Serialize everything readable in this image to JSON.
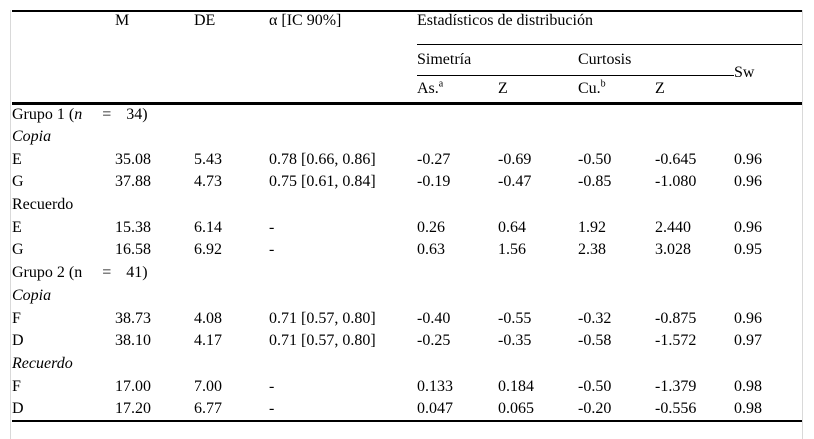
{
  "table": {
    "columns": {
      "m": "M",
      "de": "DE",
      "alpha": "α [IC 90%]",
      "dist": "Estadísticos de distribución",
      "simetria": "Simetría",
      "curtosis": "Curtosis",
      "sw": "Sw",
      "as_base": "As.",
      "as_sup": "a",
      "z_sim": "Z",
      "cu_base": "Cu.",
      "cu_sup": "b",
      "z_cur": "Z"
    },
    "rows": [
      {
        "type": "group",
        "prefix": "Grupo 1 (",
        "n": "n",
        "eq": "=",
        "suffix": "34)",
        "n_italic": true
      },
      {
        "type": "section",
        "label": "Copia",
        "italic": true
      },
      {
        "type": "data",
        "label": "E",
        "values": [
          "35.08",
          "5.43",
          "0.78 [0.66, 0.86]",
          "-0.27",
          "-0.69",
          "-0.50",
          "-0.645",
          "0.96"
        ]
      },
      {
        "type": "data",
        "label": "G",
        "values": [
          "37.88",
          "4.73",
          "0.75 [0.61, 0.84]",
          "-0.19",
          "-0.47",
          "-0.85",
          "-1.080",
          "0.96"
        ]
      },
      {
        "type": "section",
        "label": "Recuerdo",
        "italic": false
      },
      {
        "type": "data",
        "label": "E",
        "values": [
          "15.38",
          "6.14",
          "-",
          "0.26",
          "0.64",
          "1.92",
          "2.440",
          "0.96"
        ]
      },
      {
        "type": "data",
        "label": "G",
        "values": [
          "16.58",
          "6.92",
          "-",
          "0.63",
          "1.56",
          "2.38",
          "3.028",
          "0.95"
        ]
      },
      {
        "type": "group",
        "prefix": "Grupo 2 (",
        "n": "n",
        "eq": "=",
        "suffix": "41)",
        "n_italic": false
      },
      {
        "type": "section",
        "label": "Copia",
        "italic": true
      },
      {
        "type": "data",
        "label": "F",
        "values": [
          "38.73",
          "4.08",
          "0.71 [0.57, 0.80]",
          "-0.40",
          "-0.55",
          "-0.32",
          "-0.875",
          "0.96"
        ]
      },
      {
        "type": "data",
        "label": "D",
        "values": [
          "38.10",
          "4.17",
          "0.71 [0.57, 0.80]",
          "-0.25",
          "-0.35",
          "-0.58",
          "-1.572",
          "0.97"
        ]
      },
      {
        "type": "section",
        "label": "Recuerdo",
        "italic": true
      },
      {
        "type": "data",
        "label": "F",
        "values": [
          "17.00",
          "7.00",
          "-",
          "0.133",
          "0.184",
          "-0.50",
          "-1.379",
          "0.98"
        ]
      },
      {
        "type": "data",
        "label": "D",
        "values": [
          "17.20",
          "6.77",
          "-",
          "0.047",
          "0.065",
          "-0.20",
          "-0.556",
          "0.98"
        ]
      }
    ]
  }
}
